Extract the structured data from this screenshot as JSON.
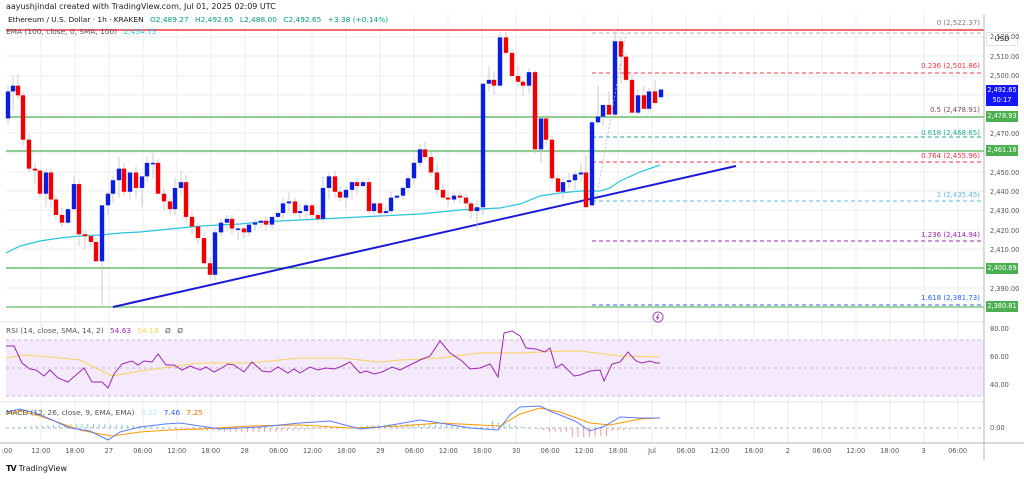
{
  "header": {
    "credit": "aayushjindal created with TradingView.com, Jul 01, 2025 02:09 UTC",
    "symbol": "Ethereum / U.S. Dollar · 1h · KRAKEN",
    "open": "O2,489.27",
    "high": "H2,492.65",
    "low": "L2,488.00",
    "close": "C2,492.65",
    "change": "+3.38 (+0.14%)",
    "ema_label": "EMA (100, close, 0, SMA, 100)",
    "ema_value": "2,454.75"
  },
  "price_axis": {
    "currency": "USD",
    "ticks": [
      "2,520.00",
      "2,510.00",
      "2,500.00",
      "2,470.00",
      "2,450.00",
      "2,440.00",
      "2,430.00",
      "2,420.00",
      "2,410.00",
      "2,390.00"
    ],
    "current_price": "2,492.65",
    "countdown": "50:17",
    "level_tags": [
      "2,478.93",
      "2,461.18",
      "2,400.69",
      "2,380.81"
    ]
  },
  "fibonacci": [
    {
      "label": "0 (2,522.37)",
      "color": "#787b86"
    },
    {
      "label": "0.236 (2,501.86)",
      "color": "#f23645"
    },
    {
      "label": "0.5 (2,478.91)",
      "color": "#7b4a5a"
    },
    {
      "label": "0.618 (2,468.65)",
      "color": "#22ab94"
    },
    {
      "label": "0.764 (2,455.96)",
      "color": "#f23645"
    },
    {
      "label": "1 (2,435.45)",
      "color": "#5fb8e0"
    },
    {
      "label": "1.236 (2,414.94)",
      "color": "#9c27b0"
    },
    {
      "label": "1.618 (2,381.73)",
      "color": "#2962ff"
    }
  ],
  "rsi": {
    "label": "RSI (14, close, SMA, 14, 2)",
    "value": "54.63",
    "sma": "54.19",
    "extra1": "Ø",
    "extra2": "Ø",
    "ticks": [
      "80.00",
      "60.00",
      "40.00"
    ]
  },
  "macd": {
    "label": "MACD (12, 26, close, 9, EMA, EMA)",
    "hist": "0.22",
    "macd": "7.46",
    "signal": "7.25",
    "ticks": [
      "0.00"
    ]
  },
  "time_axis": {
    "labels": [
      ":00",
      "12:00",
      "18:00",
      "27",
      "06:00",
      "12:00",
      "18:00",
      "28",
      "06:00",
      "12:00",
      "18:00",
      "29",
      "06:00",
      "12:00",
      "18:00",
      "30",
      "06:00",
      "12:00",
      "18:00",
      "Jul",
      "06:00",
      "12:00",
      "18:00",
      "2",
      "06:00",
      "12:00",
      "18:00",
      "3",
      "06:00"
    ]
  },
  "footer": {
    "brand": "TradingView"
  },
  "colors": {
    "up": "#0a1ee0",
    "down": "#f00000",
    "ema": "#26c6da",
    "trend": "#1a1ad6",
    "level": "#4caf50",
    "resistance": "#f23645",
    "rsi": "#9c27b0",
    "rsi_sma": "#fbd35a",
    "macd": "#2962ff",
    "signal": "#ff6d00"
  },
  "chart_data": {
    "type": "candlestick",
    "title": "Ethereum / U.S. Dollar · 1h · KRAKEN",
    "ylabel": "USD",
    "ylim": [
      2375,
      2530
    ],
    "x": [
      ":00",
      "12:00",
      "18:00",
      "27",
      "06:00",
      "12:00",
      "18:00",
      "28",
      "06:00",
      "12:00",
      "18:00",
      "29",
      "06:00",
      "12:00",
      "18:00",
      "30",
      "06:00",
      "12:00",
      "18:00",
      "Jul"
    ],
    "horizontal_levels": [
      2522.37,
      2478.93,
      2461.18,
      2400.69,
      2380.81
    ],
    "trendline": {
      "from": [
        "27 00:00",
        2381
      ],
      "to": [
        "Jul 03:00",
        2453
      ]
    },
    "ema_100_last": 2454.75,
    "last_candle": {
      "open": 2489.27,
      "high": 2492.65,
      "low": 2488.0,
      "close": 2492.65,
      "change": 3.38,
      "change_pct": 0.14
    },
    "fib_retracement": {
      "0": 2522.37,
      "0.236": 2501.86,
      "0.5": 2478.91,
      "0.618": 2468.65,
      "0.764": 2455.96,
      "1": 2435.45,
      "1.236": 2414.94,
      "1.618": 2381.73
    },
    "rsi": {
      "value": 54.63,
      "sma": 54.19,
      "bands": [
        70,
        30
      ]
    },
    "macd": {
      "hist": 0.22,
      "macd": 7.46,
      "signal": 7.25
    }
  }
}
